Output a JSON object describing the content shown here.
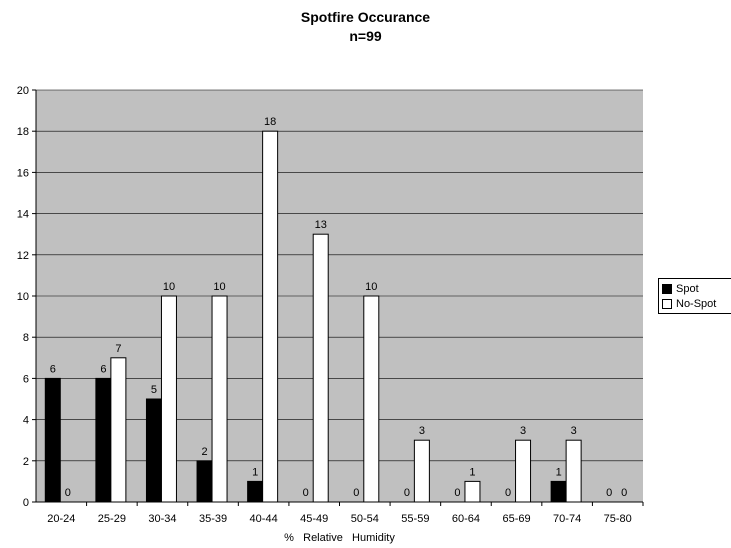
{
  "chart_data": {
    "type": "bar",
    "title": "Spotfire Occurance",
    "subtitle": "n=99",
    "xlabel": "%   Relative   Humidity",
    "ylabel": "",
    "ylim": [
      0,
      20
    ],
    "yticks": [
      0,
      2,
      4,
      6,
      8,
      10,
      12,
      14,
      16,
      18,
      20
    ],
    "grid": true,
    "legend_position": "right",
    "categories": [
      "20-24",
      "25-29",
      "30-34",
      "35-39",
      "40-44",
      "45-49",
      "50-54",
      "55-59",
      "60-64",
      "65-69",
      "70-74",
      "75-80"
    ],
    "series": [
      {
        "name": "Spot",
        "color": "#000000",
        "values": [
          6,
          6,
          5,
          2,
          1,
          0,
          0,
          0,
          0,
          0,
          1,
          0
        ]
      },
      {
        "name": "No-Spot",
        "color": "#ffffff",
        "values": [
          0,
          7,
          10,
          10,
          18,
          13,
          10,
          3,
          1,
          3,
          3,
          0
        ]
      }
    ],
    "plot_background": "#c0c0c0"
  }
}
